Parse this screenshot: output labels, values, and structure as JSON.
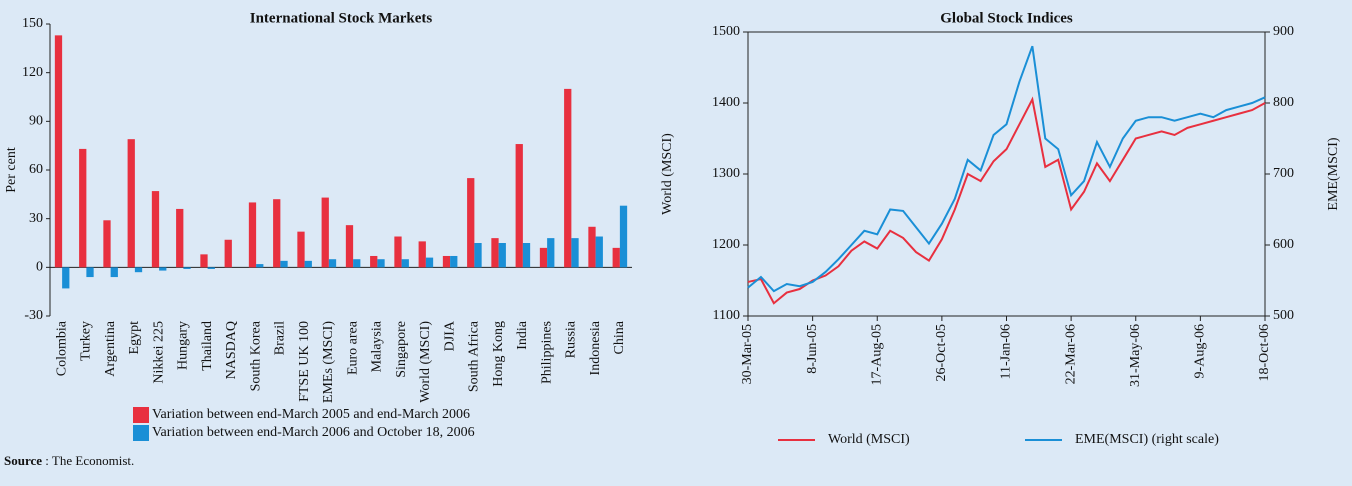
{
  "chart_data": [
    {
      "type": "bar",
      "title": "International Stock Markets",
      "y_label": "Per cent",
      "categories": [
        "Colombia",
        "Turkey",
        "Argentina",
        "Egypt",
        "Nikkei 225",
        "Hungary",
        "Thailand",
        "NASDAQ",
        "South Korea",
        "Brazil",
        "FTSE UK 100",
        "EMEs (MSCI)",
        "Euro area",
        "Malaysia",
        "Singapore",
        "World (MSCI)",
        "DJIA",
        "South Africa",
        "Hong Kong",
        "India",
        "Philippines",
        "Russia",
        "Indonesia",
        "China"
      ],
      "series": [
        {
          "name": "Variation between end-March 2005 and end-March 2006",
          "color": "#e8303f",
          "values": [
            143,
            73,
            29,
            79,
            47,
            36,
            8,
            17,
            40,
            42,
            22,
            43,
            26,
            7,
            19,
            16,
            7,
            55,
            18,
            76,
            12,
            110,
            25,
            12
          ]
        },
        {
          "name": "Variation between end-March 2006 and October 18, 2006",
          "color": "#1a8fd6",
          "values": [
            -13,
            -6,
            -6,
            -3,
            -2,
            -1,
            -1,
            0,
            2,
            4,
            4,
            5,
            5,
            5,
            5,
            6,
            7,
            15,
            15,
            15,
            18,
            18,
            19,
            38
          ]
        }
      ],
      "ylim": [
        -30,
        150
      ],
      "yticks": [
        -30,
        0,
        30,
        60,
        90,
        120,
        150
      ]
    },
    {
      "type": "line",
      "title": "Global Stock Indices",
      "y_label": "World (MSCI)",
      "y2_label": "EME(MSCI)",
      "categories": [
        "30-Mar-05",
        null,
        null,
        null,
        null,
        "8-Jun-05",
        null,
        null,
        null,
        null,
        "17-Aug-05",
        null,
        null,
        null,
        null,
        "26-Oct-05",
        null,
        null,
        null,
        null,
        "11-Jan-06",
        null,
        null,
        null,
        null,
        "22-Mar-06",
        null,
        null,
        null,
        null,
        "31-May-06",
        null,
        null,
        null,
        null,
        "9-Aug-06",
        null,
        null,
        null,
        null,
        "18-Oct-06"
      ],
      "series": [
        {
          "name": "World (MSCI)",
          "color": "#e8303f",
          "values": [
            1148,
            1152,
            1118,
            1133,
            1138,
            1150,
            1157,
            1170,
            1192,
            1205,
            1195,
            1220,
            1210,
            1190,
            1178,
            1208,
            1250,
            1300,
            1290,
            1318,
            1335,
            1370,
            1405,
            1310,
            1320,
            1250,
            1275,
            1315,
            1290,
            1320,
            1350,
            1355,
            1360,
            1355,
            1365,
            1370,
            1375,
            1380,
            1385,
            1390,
            1400
          ]
        },
        {
          "name": "EME(MSCI) (right scale)",
          "color": "#1a8fd6",
          "axis": "y2",
          "values": [
            540,
            555,
            535,
            545,
            542,
            548,
            562,
            580,
            600,
            620,
            615,
            650,
            648,
            625,
            602,
            630,
            665,
            720,
            705,
            755,
            770,
            830,
            880,
            750,
            735,
            670,
            690,
            745,
            710,
            750,
            775,
            780,
            780,
            775,
            780,
            785,
            780,
            790,
            795,
            800,
            808
          ]
        }
      ],
      "ylim": [
        1100,
        1500
      ],
      "yticks": [
        1100,
        1200,
        1300,
        1400,
        1500
      ],
      "y2lim": [
        500,
        900
      ],
      "y2ticks": [
        500,
        600,
        700,
        800,
        900
      ]
    }
  ],
  "source": {
    "label": "Source",
    "text": ": The Economist."
  }
}
